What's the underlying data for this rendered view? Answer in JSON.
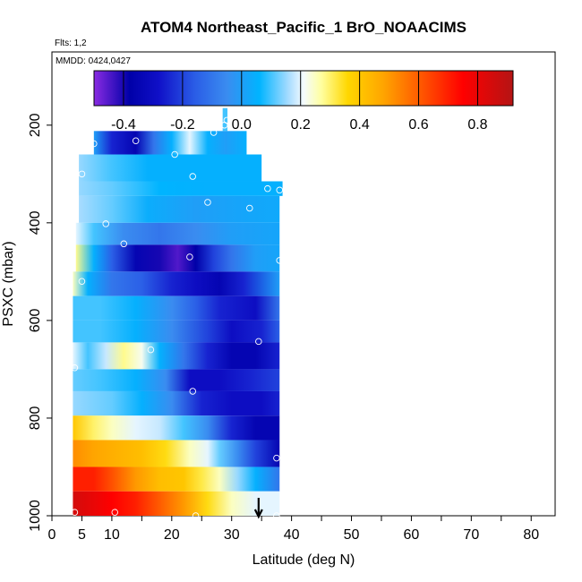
{
  "chart_data": {
    "type": "heatmap",
    "title": "ATOM4 Northeast_Pacific_1 BrO_NOAACIMS",
    "flights_label": "Flts: 1,2",
    "dates_label": "MMDD: 0424,0427",
    "xlabel": "Latitude (deg N)",
    "ylabel": "PSXC (mbar)",
    "xlim": [
      0,
      84
    ],
    "ylim": [
      1000,
      50
    ],
    "x_ticks": [
      0,
      5,
      10,
      20,
      30,
      40,
      50,
      60,
      70,
      80
    ],
    "y_ticks": [
      200,
      400,
      600,
      800,
      1000
    ],
    "colorbar": {
      "range": [
        -0.5,
        0.92
      ],
      "ticks": [
        -0.4,
        -0.2,
        0.0,
        0.2,
        0.4,
        0.6,
        0.8
      ],
      "tick_labels": [
        "-0.4",
        "-0.2",
        "0.0",
        "0.2",
        "0.4",
        "0.6",
        "0.8"
      ],
      "color_stops": [
        [
          "#8a2be2",
          -0.5
        ],
        [
          "#0000a8",
          -0.38
        ],
        [
          "#1010c8",
          -0.28
        ],
        [
          "#2a5ce6",
          -0.16
        ],
        [
          "#3a8cf0",
          -0.05
        ],
        [
          "#00b4ff",
          0.06
        ],
        [
          "#a8dcff",
          0.16
        ],
        [
          "#f4fbff",
          0.21
        ],
        [
          "#ffffa0",
          0.27
        ],
        [
          "#ffd700",
          0.36
        ],
        [
          "#ffa500",
          0.48
        ],
        [
          "#ff5000",
          0.62
        ],
        [
          "#ff0000",
          0.75
        ],
        [
          "#b41414",
          0.92
        ]
      ]
    },
    "arrow_latitude": 34.5,
    "bands": [
      {
        "p_top": 165,
        "p_bot": 212,
        "lat_min": 28.5,
        "lat_max": 29.3,
        "values": [
          [
            28.5,
            0.1
          ]
        ]
      },
      {
        "p_top": 212,
        "p_bot": 260,
        "lat_min": 7,
        "lat_max": 32.5,
        "values": [
          [
            7,
            0.0
          ],
          [
            10,
            -0.25
          ],
          [
            14,
            -0.35
          ],
          [
            17,
            -0.1
          ],
          [
            20,
            0.05
          ],
          [
            23,
            0.2
          ],
          [
            26,
            0.05
          ],
          [
            29,
            0.0
          ],
          [
            32.5,
            0.05
          ]
        ]
      },
      {
        "p_top": 260,
        "p_bot": 315,
        "lat_min": 4.5,
        "lat_max": 35,
        "values": [
          [
            4.5,
            0.15
          ],
          [
            10,
            0.1
          ],
          [
            16,
            0.05
          ],
          [
            22,
            0.05
          ],
          [
            28,
            0.05
          ],
          [
            35,
            0.05
          ]
        ]
      },
      {
        "p_top": 315,
        "p_bot": 345,
        "lat_min": 4.5,
        "lat_max": 38.5,
        "values": [
          [
            4.5,
            0.15
          ],
          [
            10,
            0.12
          ],
          [
            18,
            0.06
          ],
          [
            26,
            0.05
          ],
          [
            32,
            0.05
          ],
          [
            38.5,
            0.05
          ]
        ]
      },
      {
        "p_top": 345,
        "p_bot": 400,
        "lat_min": 4.5,
        "lat_max": 38,
        "values": [
          [
            4.5,
            0.16
          ],
          [
            10,
            0.12
          ],
          [
            16,
            0.04
          ],
          [
            24,
            0.0
          ],
          [
            32,
            0.02
          ],
          [
            38,
            0.03
          ]
        ]
      },
      {
        "p_top": 400,
        "p_bot": 445,
        "lat_min": 4,
        "lat_max": 38,
        "values": [
          [
            4,
            0.2
          ],
          [
            7,
            0.1
          ],
          [
            12,
            -0.05
          ],
          [
            18,
            -0.1
          ],
          [
            24,
            -0.05
          ],
          [
            30,
            0.0
          ],
          [
            38,
            0.02
          ]
        ]
      },
      {
        "p_top": 445,
        "p_bot": 500,
        "lat_min": 4,
        "lat_max": 38,
        "values": [
          [
            4,
            0.28
          ],
          [
            7,
            0.05
          ],
          [
            10,
            -0.15
          ],
          [
            14,
            -0.35
          ],
          [
            18,
            -0.4
          ],
          [
            21,
            -0.45
          ],
          [
            24,
            -0.38
          ],
          [
            27,
            -0.2
          ],
          [
            30,
            -0.1
          ],
          [
            34,
            0.0
          ],
          [
            38,
            0.02
          ]
        ]
      },
      {
        "p_top": 500,
        "p_bot": 550,
        "lat_min": 3.5,
        "lat_max": 38,
        "values": [
          [
            3.5,
            0.25
          ],
          [
            6,
            0.05
          ],
          [
            10,
            -0.1
          ],
          [
            15,
            -0.15
          ],
          [
            20,
            -0.25
          ],
          [
            24,
            -0.3
          ],
          [
            28,
            -0.35
          ],
          [
            32,
            -0.25
          ],
          [
            38,
            0.0
          ]
        ]
      },
      {
        "p_top": 550,
        "p_bot": 600,
        "lat_min": 3.5,
        "lat_max": 38,
        "values": [
          [
            3.5,
            0.1
          ],
          [
            8,
            0.1
          ],
          [
            14,
            0.05
          ],
          [
            20,
            -0.05
          ],
          [
            24,
            -0.15
          ],
          [
            28,
            -0.25
          ],
          [
            34,
            -0.3
          ],
          [
            38,
            -0.1
          ]
        ]
      },
      {
        "p_top": 600,
        "p_bot": 645,
        "lat_min": 3.5,
        "lat_max": 38,
        "values": [
          [
            3.5,
            0.1
          ],
          [
            8,
            0.1
          ],
          [
            14,
            0.05
          ],
          [
            20,
            -0.05
          ],
          [
            26,
            -0.2
          ],
          [
            30,
            -0.3
          ],
          [
            35,
            -0.25
          ],
          [
            38,
            -0.15
          ]
        ]
      },
      {
        "p_top": 645,
        "p_bot": 700,
        "lat_min": 3.5,
        "lat_max": 38,
        "values": [
          [
            3.5,
            0.2
          ],
          [
            6,
            0.1
          ],
          [
            9,
            0.18
          ],
          [
            12,
            0.28
          ],
          [
            15,
            0.22
          ],
          [
            18,
            0.05
          ],
          [
            22,
            -0.1
          ],
          [
            26,
            -0.25
          ],
          [
            30,
            -0.35
          ],
          [
            34,
            -0.35
          ],
          [
            38,
            -0.25
          ]
        ]
      },
      {
        "p_top": 700,
        "p_bot": 745,
        "lat_min": 3.5,
        "lat_max": 38,
        "values": [
          [
            3.5,
            0.12
          ],
          [
            8,
            0.1
          ],
          [
            14,
            0.05
          ],
          [
            19,
            -0.05
          ],
          [
            23,
            -0.3
          ],
          [
            28,
            -0.3
          ],
          [
            33,
            -0.25
          ],
          [
            38,
            -0.2
          ]
        ]
      },
      {
        "p_top": 745,
        "p_bot": 795,
        "lat_min": 3.5,
        "lat_max": 38,
        "values": [
          [
            3.5,
            0.15
          ],
          [
            10,
            0.12
          ],
          [
            15,
            0.05
          ],
          [
            20,
            -0.05
          ],
          [
            25,
            -0.25
          ],
          [
            30,
            -0.3
          ],
          [
            35,
            -0.3
          ],
          [
            38,
            -0.25
          ]
        ]
      },
      {
        "p_top": 795,
        "p_bot": 845,
        "lat_min": 3.5,
        "lat_max": 38,
        "values": [
          [
            3.5,
            0.4
          ],
          [
            7,
            0.3
          ],
          [
            10,
            0.25
          ],
          [
            14,
            0.2
          ],
          [
            18,
            0.18
          ],
          [
            22,
            0.1
          ],
          [
            26,
            -0.05
          ],
          [
            30,
            -0.25
          ],
          [
            34,
            -0.35
          ],
          [
            38,
            -0.35
          ]
        ]
      },
      {
        "p_top": 845,
        "p_bot": 900,
        "lat_min": 3.5,
        "lat_max": 38,
        "values": [
          [
            3.5,
            0.52
          ],
          [
            7,
            0.48
          ],
          [
            11,
            0.45
          ],
          [
            15,
            0.42
          ],
          [
            19,
            0.35
          ],
          [
            23,
            0.25
          ],
          [
            26,
            0.2
          ],
          [
            28,
            0.12
          ],
          [
            31,
            -0.05
          ],
          [
            34,
            -0.2
          ],
          [
            38,
            -0.35
          ]
        ]
      },
      {
        "p_top": 900,
        "p_bot": 950,
        "lat_min": 3.5,
        "lat_max": 38,
        "values": [
          [
            3.5,
            0.7
          ],
          [
            7,
            0.7
          ],
          [
            10,
            0.62
          ],
          [
            14,
            0.5
          ],
          [
            18,
            0.42
          ],
          [
            22,
            0.4
          ],
          [
            25,
            0.32
          ],
          [
            28,
            0.25
          ],
          [
            31,
            0.15
          ],
          [
            34,
            0.05
          ],
          [
            38,
            -0.1
          ]
        ]
      },
      {
        "p_top": 950,
        "p_bot": 1000,
        "lat_min": 3.5,
        "lat_max": 38,
        "values": [
          [
            3.5,
            0.85
          ],
          [
            7,
            0.8
          ],
          [
            10,
            0.75
          ],
          [
            14,
            0.7
          ],
          [
            18,
            0.6
          ],
          [
            22,
            0.5
          ],
          [
            26,
            0.35
          ],
          [
            30,
            0.25
          ],
          [
            34,
            0.2
          ],
          [
            38,
            0.2
          ]
        ]
      }
    ],
    "markers": [
      [
        29.2,
        190
      ],
      [
        28.8,
        200
      ],
      [
        27,
        215
      ],
      [
        14,
        232
      ],
      [
        7,
        238
      ],
      [
        20.5,
        260
      ],
      [
        5,
        300
      ],
      [
        23.5,
        305
      ],
      [
        26,
        358
      ],
      [
        33,
        370
      ],
      [
        36,
        330
      ],
      [
        38,
        333
      ],
      [
        9,
        402
      ],
      [
        12,
        443
      ],
      [
        23,
        470
      ],
      [
        38,
        477
      ],
      [
        5,
        520
      ],
      [
        34.5,
        643
      ],
      [
        16.5,
        660
      ],
      [
        3.8,
        697
      ],
      [
        23.5,
        745
      ],
      [
        37.5,
        882
      ],
      [
        3.8,
        993
      ],
      [
        10.5,
        993
      ],
      [
        24,
        1000
      ],
      [
        37.5,
        1000
      ]
    ]
  }
}
